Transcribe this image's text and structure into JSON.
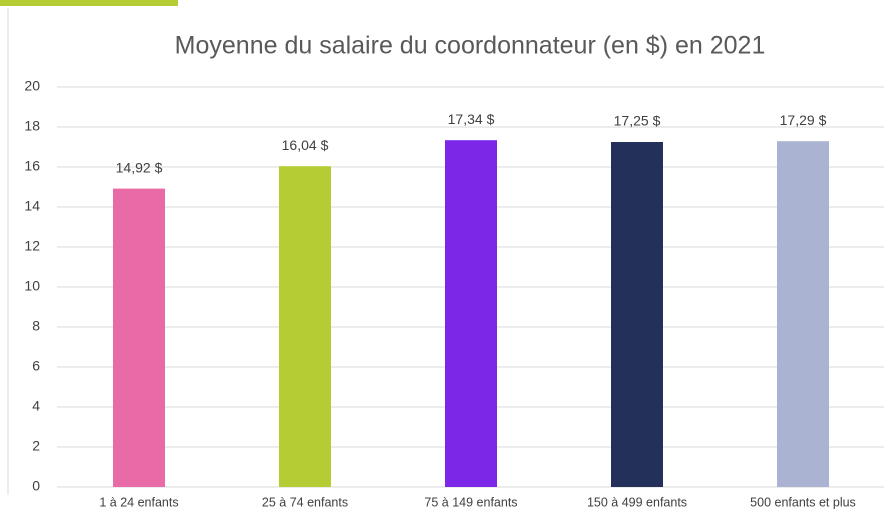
{
  "chart_data": {
    "type": "bar",
    "title": "Moyenne du salaire du coordonnateur (en $) en 2021",
    "categories": [
      "1 à 24 enfants",
      "25 à 74 enfants",
      "75 à 149 enfants",
      "150 à 499 enfants",
      "500 enfants et plus"
    ],
    "values": [
      14.92,
      16.04,
      17.34,
      17.25,
      17.29
    ],
    "value_labels": [
      "14,92 $",
      "16,04 $",
      "17,34 $",
      "17,25 $",
      "17,29 $"
    ],
    "colors": [
      "#e86aa6",
      "#b5cc34",
      "#7c27e8",
      "#22305a",
      "#aab3d1"
    ],
    "ylim": [
      0,
      20
    ],
    "yticks": [
      0,
      2,
      4,
      6,
      8,
      10,
      12,
      14,
      16,
      18,
      20
    ],
    "grid": true
  }
}
